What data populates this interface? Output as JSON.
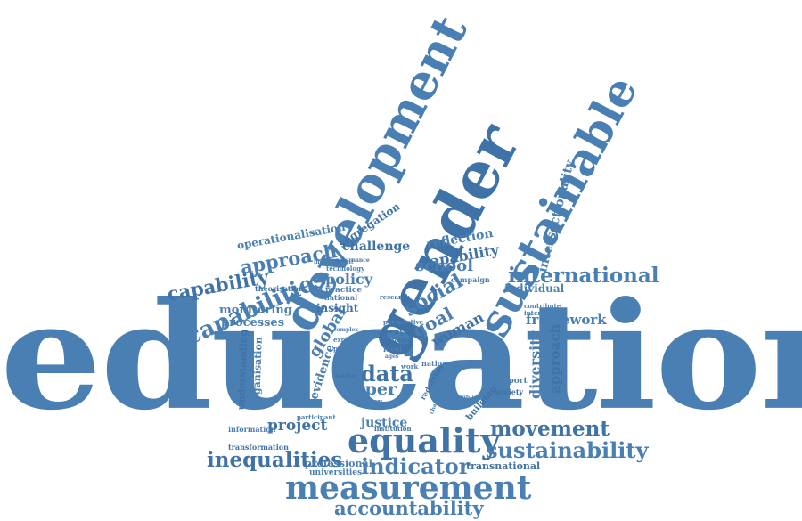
{
  "colors": {
    "word": "#4a7fb3",
    "word_dark": "#3f72a6",
    "background": "#ffffff"
  },
  "words": [
    "education",
    "gender",
    "development",
    "sustainable",
    "equality",
    "measurement",
    "accountability",
    "inequalities",
    "indicator",
    "sustainability",
    "movement",
    "international",
    "capabilities",
    "capability",
    "approach",
    "operationalisation",
    "segregation",
    "reflection",
    "intersectionality",
    "school",
    "social",
    "data",
    "paper",
    "goal",
    "woman",
    "global",
    "policy",
    "challenge",
    "framework",
    "diversity",
    "monitoring",
    "processes",
    "project",
    "justice",
    "individual",
    "insight",
    "girl",
    "evidence",
    "understanding",
    "organisation",
    "professional",
    "transnational",
    "universities",
    "practice",
    "theorisation",
    "value",
    "report",
    "building",
    "agency",
    "information",
    "transformation",
    "national",
    "campaign",
    "society",
    "nation",
    "level",
    "kenya",
    "poverty",
    "explore",
    "institution",
    "participant",
    "perspective",
    "reduction",
    "contribute",
    "intersecting",
    "research",
    "technology",
    "improvement",
    "governance",
    "highlight",
    "change",
    "target",
    "complex",
    "work",
    "teacher",
    "ages",
    "sdgs"
  ]
}
